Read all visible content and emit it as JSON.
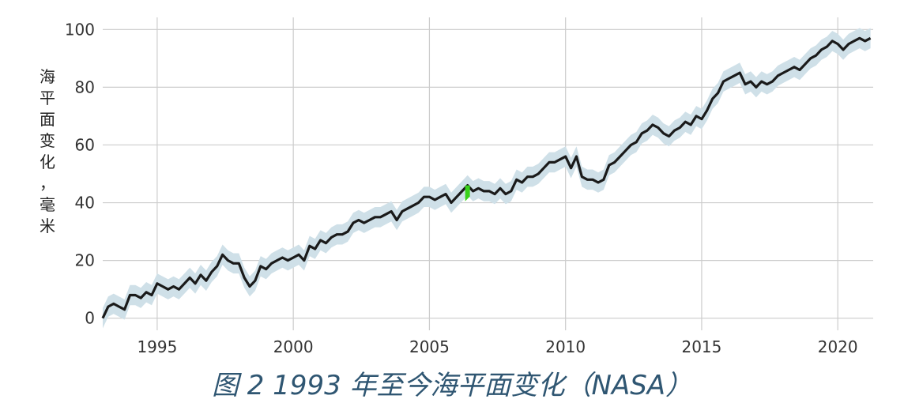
{
  "chart_data": {
    "type": "line",
    "ylabel": "海平面变化，毫米",
    "caption": "图 2 1993 年至今海平面变化（NASA）",
    "xlim": [
      1993.0,
      2021.3
    ],
    "ylim": [
      -2,
      102
    ],
    "xticks": [
      1995,
      2000,
      2005,
      2010,
      2015,
      2020
    ],
    "yticks": [
      0,
      20,
      40,
      60,
      80,
      100
    ],
    "grid": true,
    "colors": {
      "line": "#1a1a1a",
      "band": "#cfe0e8",
      "highlight": "#39d11a",
      "grid": "#cccccc"
    },
    "band_halfwidth": 3.5,
    "highlight_point": {
      "x": 2006.4,
      "y": 46
    },
    "series": [
      {
        "x": [
          1993.0,
          1993.2,
          1993.4,
          1993.6,
          1993.8,
          1994.0,
          1994.2,
          1994.4,
          1994.6,
          1994.8,
          1995.0,
          1995.2,
          1995.4,
          1995.6,
          1995.8,
          1996.0,
          1996.2,
          1996.4,
          1996.6,
          1996.8,
          1997.0,
          1997.2,
          1997.4,
          1997.6,
          1997.8,
          1998.0,
          1998.2,
          1998.4,
          1998.6,
          1998.8,
          1999.0,
          1999.2,
          1999.4,
          1999.6,
          1999.8,
          2000.0,
          2000.2,
          2000.4,
          2000.6,
          2000.8,
          2001.0,
          2001.2,
          2001.4,
          2001.6,
          2001.8,
          2002.0,
          2002.2,
          2002.4,
          2002.6,
          2002.8,
          2003.0,
          2003.2,
          2003.4,
          2003.6,
          2003.8,
          2004.0,
          2004.2,
          2004.4,
          2004.6,
          2004.8,
          2005.0,
          2005.2,
          2005.4,
          2005.6,
          2005.8,
          2006.0,
          2006.2,
          2006.4,
          2006.6,
          2006.8,
          2007.0,
          2007.2,
          2007.4,
          2007.6,
          2007.8,
          2008.0,
          2008.2,
          2008.4,
          2008.6,
          2008.8,
          2009.0,
          2009.2,
          2009.4,
          2009.6,
          2009.8,
          2010.0,
          2010.2,
          2010.4,
          2010.6,
          2010.8,
          2011.0,
          2011.2,
          2011.4,
          2011.6,
          2011.8,
          2012.0,
          2012.2,
          2012.4,
          2012.6,
          2012.8,
          2013.0,
          2013.2,
          2013.4,
          2013.6,
          2013.8,
          2014.0,
          2014.2,
          2014.4,
          2014.6,
          2014.8,
          2015.0,
          2015.2,
          2015.4,
          2015.6,
          2015.8,
          2016.0,
          2016.2,
          2016.4,
          2016.6,
          2016.8,
          2017.0,
          2017.2,
          2017.4,
          2017.6,
          2017.8,
          2018.0,
          2018.2,
          2018.4,
          2018.6,
          2018.8,
          2019.0,
          2019.2,
          2019.4,
          2019.6,
          2019.8,
          2020.0,
          2020.2,
          2020.4,
          2020.6,
          2020.8,
          2021.0,
          2021.2
        ],
        "values": [
          0,
          4,
          5,
          4,
          3,
          8,
          8,
          7,
          9,
          8,
          12,
          11,
          10,
          11,
          10,
          12,
          14,
          12,
          15,
          13,
          16,
          18,
          22,
          20,
          19,
          19,
          14,
          11,
          13,
          18,
          17,
          19,
          20,
          21,
          20,
          21,
          22,
          20,
          25,
          24,
          27,
          26,
          28,
          29,
          29,
          30,
          33,
          34,
          33,
          34,
          35,
          35,
          36,
          37,
          34,
          37,
          38,
          39,
          40,
          42,
          42,
          41,
          42,
          43,
          40,
          42,
          44,
          46,
          44,
          45,
          44,
          44,
          43,
          45,
          43,
          44,
          48,
          47,
          49,
          49,
          50,
          52,
          54,
          54,
          55,
          56,
          52,
          56,
          49,
          48,
          48,
          47,
          48,
          53,
          54,
          56,
          58,
          60,
          61,
          64,
          65,
          67,
          66,
          64,
          63,
          65,
          66,
          68,
          67,
          70,
          69,
          72,
          76,
          78,
          82,
          83,
          84,
          85,
          81,
          82,
          80,
          82,
          81,
          82,
          84,
          85,
          86,
          87,
          86,
          88,
          90,
          91,
          93,
          94,
          96,
          95,
          93,
          95,
          96,
          97,
          96,
          97
        ]
      }
    ]
  }
}
